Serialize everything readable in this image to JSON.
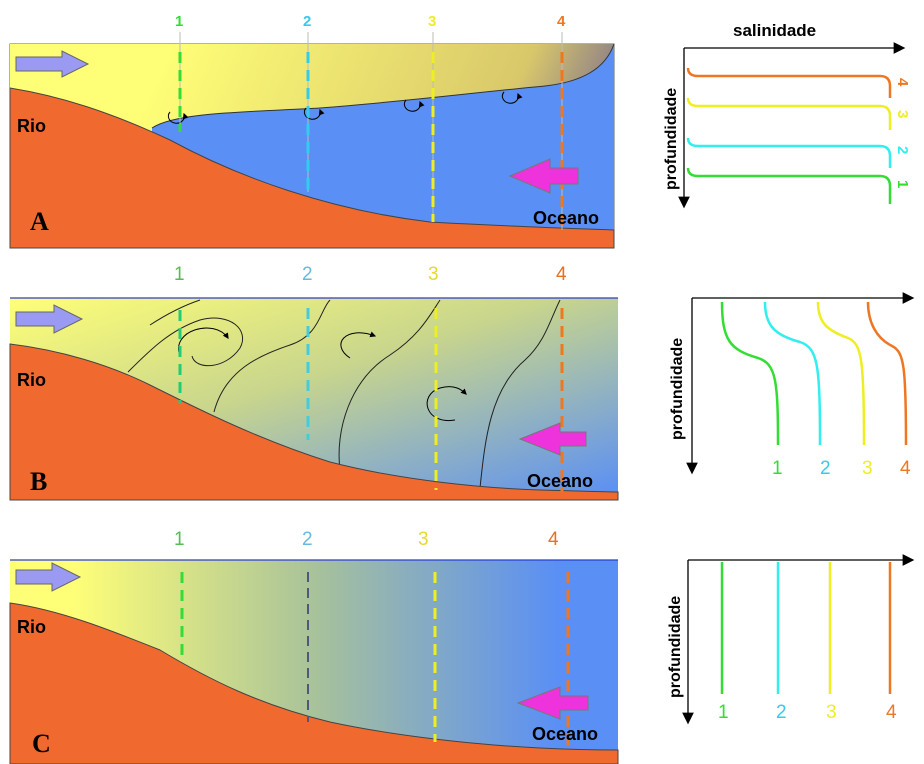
{
  "labels": {
    "river": "Rio",
    "ocean": "Oceano",
    "salinity": "salinidade",
    "depth": "profundidade"
  },
  "panels": [
    {
      "letter": "A",
      "stations": [
        "1",
        "2",
        "3",
        "4"
      ],
      "profile_labels": [
        "1",
        "2",
        "3",
        "4"
      ]
    },
    {
      "letter": "B",
      "stations": [
        "1",
        "2",
        "3",
        "4"
      ],
      "profile_labels": [
        "1",
        "2",
        "3",
        "4"
      ]
    },
    {
      "letter": "C",
      "stations": [
        "1",
        "2",
        "3",
        "4"
      ],
      "profile_labels": [
        "1",
        "2",
        "3",
        "4"
      ]
    }
  ],
  "colors": {
    "station_1": "#33dd33",
    "station_2": "#33ccee",
    "station_3": "#eeee22",
    "station_4": "#ee7722",
    "freshwater": "#ffff77",
    "seawater": "#5a8ff5",
    "land": "#f06a30",
    "river_arrow": "#9a9af2",
    "ocean_arrow": "#ee33dd"
  }
}
